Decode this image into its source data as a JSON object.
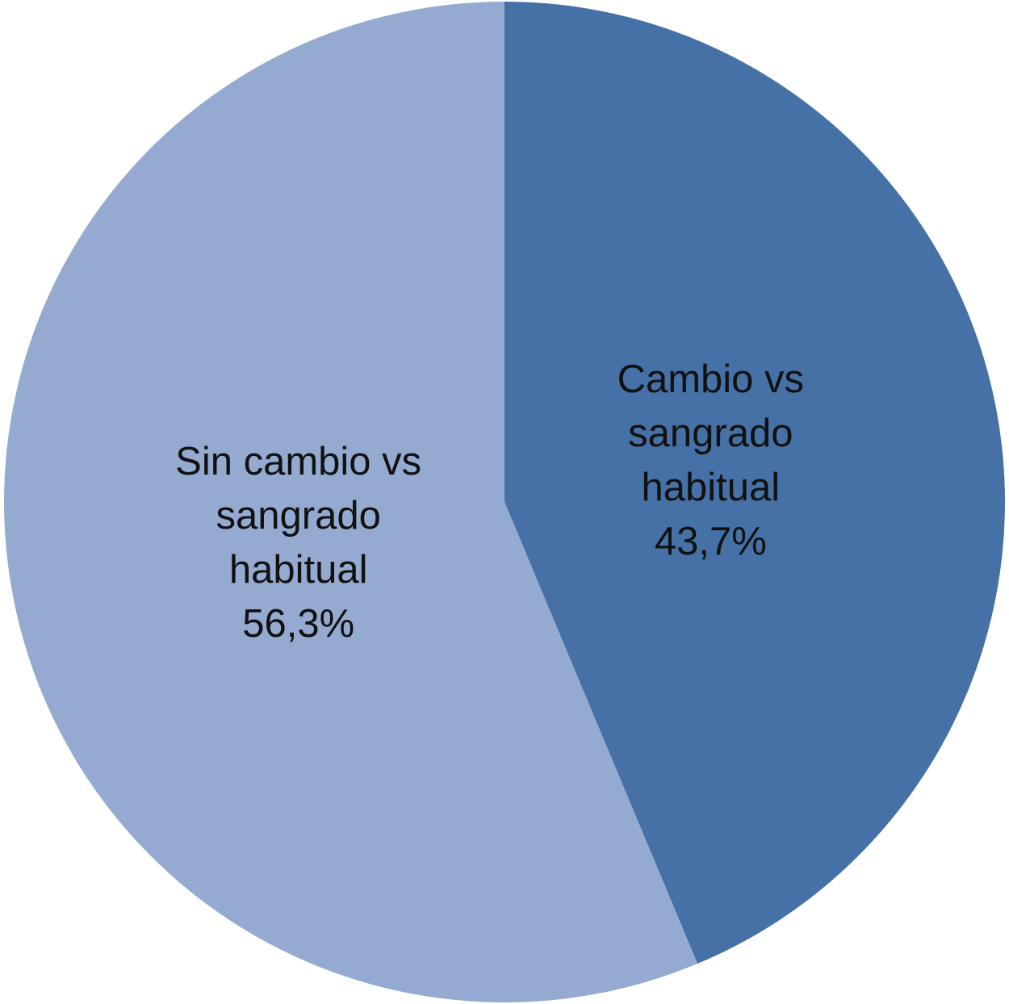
{
  "chart_data": {
    "type": "pie",
    "categories": [
      "Cambio vs sangrado habitual",
      "Sin cambio vs sangrado habitual"
    ],
    "values": [
      43.7,
      56.3
    ],
    "value_labels": [
      "43,7%",
      "56,3%"
    ],
    "colors": [
      "#4571a6",
      "#95aad0"
    ]
  }
}
